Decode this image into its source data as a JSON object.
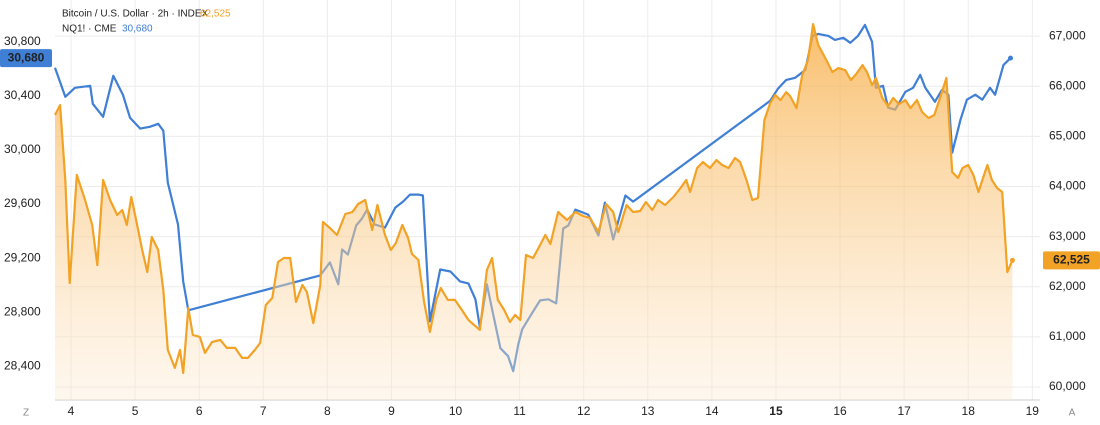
{
  "chart_data": {
    "type": "line",
    "series": [
      {
        "name": "NQ1! · CME",
        "color": "#3f7fd6",
        "axis": "y",
        "last_value_label": "30,680",
        "x": [
          3.75,
          3.91,
          4.06,
          4.3,
          4.34,
          4.5,
          4.66,
          4.81,
          4.92,
          5.08,
          5.23,
          5.36,
          5.44,
          5.51,
          5.67,
          5.75,
          5.83,
          7.89,
          8.04,
          8.17,
          8.23,
          8.32,
          8.45,
          8.54,
          8.62,
          8.74,
          8.9,
          9.06,
          9.18,
          9.29,
          9.42,
          9.49,
          9.6,
          9.76,
          9.92,
          10.07,
          10.2,
          10.31,
          10.38,
          10.49,
          10.57,
          10.7,
          10.82,
          10.9,
          10.98,
          11.04,
          11.21,
          11.32,
          11.45,
          11.57,
          11.68,
          11.76,
          11.87,
          12.07,
          12.23,
          12.33,
          12.46,
          12.65,
          12.77,
          14.91,
          15.03,
          15.16,
          15.3,
          15.46,
          15.57,
          15.66,
          15.82,
          15.92,
          16.05,
          16.16,
          16.28,
          16.39,
          16.5,
          16.56,
          16.67,
          16.75,
          16.86,
          17.02,
          17.14,
          17.25,
          17.33,
          17.48,
          17.59,
          17.69,
          17.75,
          17.88,
          17.98,
          18.11,
          18.22,
          18.34,
          18.42,
          18.55,
          18.66
        ],
        "values": [
          30608,
          30394,
          30460,
          30475,
          30342,
          30246,
          30549,
          30409,
          30239,
          30158,
          30172,
          30194,
          30143,
          29759,
          29449,
          29028,
          28814,
          29072,
          29168,
          29006,
          29264,
          29227,
          29441,
          29493,
          29559,
          29449,
          29426,
          29574,
          29618,
          29670,
          29670,
          29663,
          28732,
          29116,
          29101,
          29028,
          29013,
          28895,
          28688,
          29006,
          28821,
          28533,
          28474,
          28363,
          28562,
          28673,
          28806,
          28887,
          28895,
          28865,
          29419,
          29441,
          29559,
          29522,
          29367,
          29611,
          29338,
          29663,
          29618,
          30364,
          30453,
          30519,
          30534,
          30593,
          30844,
          30859,
          30844,
          30815,
          30830,
          30793,
          30844,
          30926,
          30800,
          30460,
          30475,
          30313,
          30298,
          30431,
          30460,
          30556,
          30460,
          30357,
          30445,
          30409,
          29980,
          30224,
          30372,
          30409,
          30372,
          30460,
          30409,
          30630,
          30680
        ]
      },
      {
        "name": "Bitcoin / U.S. Dollar · 2h · INDEX",
        "color": "#f2a225",
        "axis": "y2",
        "last_value_label": "62,525",
        "x": [
          3.75,
          3.83,
          3.91,
          3.98,
          4.09,
          4.22,
          4.33,
          4.41,
          4.5,
          4.61,
          4.72,
          4.8,
          4.87,
          4.94,
          5.0,
          5.11,
          5.19,
          5.26,
          5.36,
          5.44,
          5.51,
          5.62,
          5.7,
          5.75,
          5.83,
          5.9,
          6.01,
          6.09,
          6.2,
          6.33,
          6.43,
          6.56,
          6.67,
          6.76,
          6.87,
          6.95,
          7.04,
          7.14,
          7.23,
          7.32,
          7.42,
          7.51,
          7.61,
          7.68,
          7.78,
          7.89,
          7.93,
          8.04,
          8.15,
          8.28,
          8.39,
          8.48,
          8.59,
          8.7,
          8.78,
          8.9,
          8.99,
          9.07,
          9.17,
          9.26,
          9.32,
          9.42,
          9.51,
          9.6,
          9.7,
          9.77,
          9.88,
          9.99,
          10.1,
          10.2,
          10.29,
          10.38,
          10.49,
          10.57,
          10.66,
          10.76,
          10.85,
          10.93,
          11.01,
          11.1,
          11.21,
          11.32,
          11.4,
          11.48,
          11.6,
          11.74,
          11.87,
          11.99,
          12.1,
          12.23,
          12.35,
          12.46,
          12.54,
          12.67,
          12.77,
          12.88,
          12.97,
          13.07,
          13.16,
          13.27,
          13.4,
          13.51,
          13.6,
          13.66,
          13.77,
          13.86,
          13.97,
          14.07,
          14.16,
          14.26,
          14.36,
          14.44,
          14.54,
          14.63,
          14.72,
          14.82,
          14.91,
          14.99,
          15.07,
          15.16,
          15.22,
          15.32,
          15.41,
          15.5,
          15.58,
          15.66,
          15.77,
          15.88,
          15.97,
          16.08,
          16.17,
          16.25,
          16.35,
          16.42,
          16.5,
          16.56,
          16.66,
          16.75,
          16.83,
          16.92,
          17.02,
          17.1,
          17.2,
          17.28,
          17.38,
          17.47,
          17.56,
          17.66,
          17.75,
          17.84,
          17.91,
          18.0,
          18.08,
          18.16,
          18.23,
          18.3,
          18.37,
          18.45,
          18.53,
          18.61,
          18.69
        ],
        "values": [
          65425,
          65624,
          64129,
          62075,
          64228,
          63730,
          63231,
          62434,
          64129,
          63730,
          63431,
          63530,
          63231,
          63790,
          63431,
          62733,
          62294,
          62992,
          62733,
          61935,
          60739,
          60380,
          60739,
          60280,
          61576,
          61038,
          60998,
          60679,
          60898,
          60938,
          60779,
          60779,
          60579,
          60579,
          60739,
          60878,
          61636,
          61776,
          62494,
          62573,
          62573,
          61696,
          62035,
          61895,
          61277,
          62035,
          63291,
          63171,
          63032,
          63451,
          63491,
          63650,
          63730,
          63132,
          63630,
          63032,
          62733,
          62872,
          63231,
          62972,
          62653,
          62533,
          61696,
          61098,
          61736,
          61975,
          61736,
          61736,
          61536,
          61337,
          61237,
          61138,
          62334,
          62573,
          61736,
          61536,
          61297,
          61437,
          61337,
          62633,
          62573,
          62833,
          63032,
          62852,
          63491,
          63331,
          63491,
          63411,
          63371,
          63092,
          63650,
          63491,
          63092,
          63630,
          63491,
          63510,
          63690,
          63530,
          63730,
          63630,
          63790,
          63969,
          64129,
          63889,
          64368,
          64488,
          64368,
          64527,
          64428,
          64368,
          64567,
          64488,
          64129,
          63730,
          63770,
          65325,
          65664,
          65824,
          65724,
          65883,
          65804,
          65564,
          66222,
          66521,
          67239,
          66821,
          66561,
          66282,
          66362,
          66322,
          66123,
          66242,
          66422,
          66282,
          66023,
          66163,
          65764,
          65604,
          65764,
          65644,
          65724,
          65564,
          65724,
          65485,
          65365,
          65425,
          65764,
          66163,
          64288,
          64169,
          64368,
          64428,
          64228,
          63889,
          64169,
          64428,
          64129,
          63969,
          63889,
          62294,
          62525
        ]
      }
    ],
    "xlim": [
      3.75,
      19.12
    ],
    "xticks": [
      4,
      5,
      6,
      7,
      8,
      9,
      10,
      11,
      12,
      13,
      14,
      15,
      16,
      17,
      18,
      19
    ],
    "emphasized_xtick": 15,
    "ylim": [
      28150,
      31110
    ],
    "yticks": [
      {
        "value": 28400,
        "label": "28,400"
      },
      {
        "value": 28800,
        "label": "28,800"
      },
      {
        "value": 29200,
        "label": "29,200"
      },
      {
        "value": 29600,
        "label": "29,600"
      },
      {
        "value": 30000,
        "label": "30,000"
      },
      {
        "value": 30400,
        "label": "30,400"
      },
      {
        "value": 30800,
        "label": "30,800"
      }
    ],
    "y2lim": [
      59740,
      67720
    ],
    "y2ticks": [
      {
        "value": 60000,
        "label": "60,000"
      },
      {
        "value": 61000,
        "label": "61,000"
      },
      {
        "value": 62000,
        "label": "62,000"
      },
      {
        "value": 63000,
        "label": "63,000"
      },
      {
        "value": 64000,
        "label": "64,000"
      },
      {
        "value": 65000,
        "label": "65,000"
      },
      {
        "value": 66000,
        "label": "66,000"
      },
      {
        "value": 67000,
        "label": "67,000"
      }
    ],
    "grid": true
  },
  "ui": {
    "left_button": "Z",
    "right_button": "A"
  }
}
